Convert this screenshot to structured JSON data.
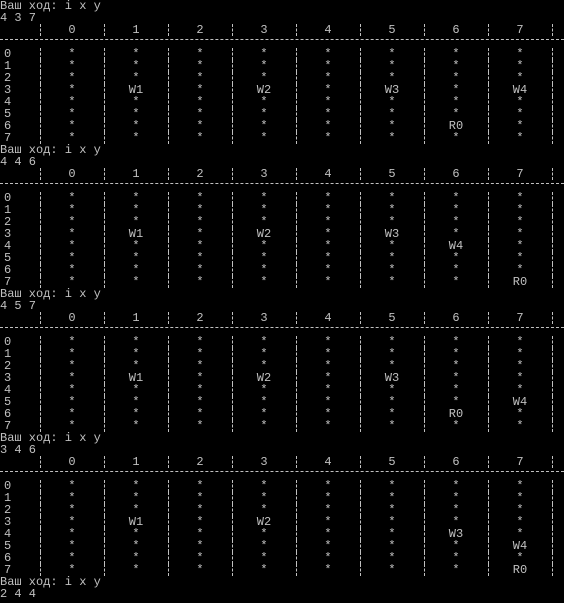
{
  "prompt": "Ваш ход: i x y",
  "col_headers": [
    "0",
    "1",
    "2",
    "3",
    "4",
    "5",
    "6",
    "7"
  ],
  "row_labels": [
    "0",
    "1",
    "2",
    "3",
    "4",
    "5",
    "6",
    "7"
  ],
  "inputs_before": [
    "4 3 7"
  ],
  "boards": [
    {
      "cells": [
        [
          "*",
          "*",
          "*",
          "*",
          "*",
          "*",
          "*",
          "*"
        ],
        [
          "*",
          "*",
          "*",
          "*",
          "*",
          "*",
          "*",
          "*"
        ],
        [
          "*",
          "*",
          "*",
          "*",
          "*",
          "*",
          "*",
          "*"
        ],
        [
          "*",
          "W1",
          "*",
          "W2",
          "*",
          "W3",
          "*",
          "W4"
        ],
        [
          "*",
          "*",
          "*",
          "*",
          "*",
          "*",
          "*",
          "*"
        ],
        [
          "*",
          "*",
          "*",
          "*",
          "*",
          "*",
          "*",
          "*"
        ],
        [
          "*",
          "*",
          "*",
          "*",
          "*",
          "*",
          "R0",
          "*"
        ],
        [
          "*",
          "*",
          "*",
          "*",
          "*",
          "*",
          "*",
          "*"
        ]
      ],
      "input_after": "4 4 6"
    },
    {
      "cells": [
        [
          "*",
          "*",
          "*",
          "*",
          "*",
          "*",
          "*",
          "*"
        ],
        [
          "*",
          "*",
          "*",
          "*",
          "*",
          "*",
          "*",
          "*"
        ],
        [
          "*",
          "*",
          "*",
          "*",
          "*",
          "*",
          "*",
          "*"
        ],
        [
          "*",
          "W1",
          "*",
          "W2",
          "*",
          "W3",
          "*",
          "*"
        ],
        [
          "*",
          "*",
          "*",
          "*",
          "*",
          "*",
          "W4",
          "*"
        ],
        [
          "*",
          "*",
          "*",
          "*",
          "*",
          "*",
          "*",
          "*"
        ],
        [
          "*",
          "*",
          "*",
          "*",
          "*",
          "*",
          "*",
          "*"
        ],
        [
          "*",
          "*",
          "*",
          "*",
          "*",
          "*",
          "*",
          "R0"
        ]
      ],
      "input_after": "4 5 7"
    },
    {
      "cells": [
        [
          "*",
          "*",
          "*",
          "*",
          "*",
          "*",
          "*",
          "*"
        ],
        [
          "*",
          "*",
          "*",
          "*",
          "*",
          "*",
          "*",
          "*"
        ],
        [
          "*",
          "*",
          "*",
          "*",
          "*",
          "*",
          "*",
          "*"
        ],
        [
          "*",
          "W1",
          "*",
          "W2",
          "*",
          "W3",
          "*",
          "*"
        ],
        [
          "*",
          "*",
          "*",
          "*",
          "*",
          "*",
          "*",
          "*"
        ],
        [
          "*",
          "*",
          "*",
          "*",
          "*",
          "*",
          "*",
          "W4"
        ],
        [
          "*",
          "*",
          "*",
          "*",
          "*",
          "*",
          "R0",
          "*"
        ],
        [
          "*",
          "*",
          "*",
          "*",
          "*",
          "*",
          "*",
          "*"
        ]
      ],
      "input_after": "3 4 6"
    },
    {
      "cells": [
        [
          "*",
          "*",
          "*",
          "*",
          "*",
          "*",
          "*",
          "*"
        ],
        [
          "*",
          "*",
          "*",
          "*",
          "*",
          "*",
          "*",
          "*"
        ],
        [
          "*",
          "*",
          "*",
          "*",
          "*",
          "*",
          "*",
          "*"
        ],
        [
          "*",
          "W1",
          "*",
          "W2",
          "*",
          "*",
          "*",
          "*"
        ],
        [
          "*",
          "*",
          "*",
          "*",
          "*",
          "*",
          "W3",
          "*"
        ],
        [
          "*",
          "*",
          "*",
          "*",
          "*",
          "*",
          "*",
          "W4"
        ],
        [
          "*",
          "*",
          "*",
          "*",
          "*",
          "*",
          "*",
          "*"
        ],
        [
          "*",
          "*",
          "*",
          "*",
          "*",
          "*",
          "*",
          "R0"
        ]
      ],
      "input_after": "2 4 4"
    }
  ]
}
